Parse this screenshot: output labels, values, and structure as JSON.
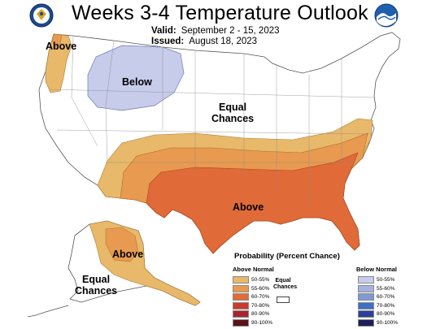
{
  "header": {
    "title": "Weeks 3-4 Temperature Outlook",
    "valid_label": "Valid:",
    "valid_value": "September 2 - 15, 2023",
    "issued_label": "Issued:",
    "issued_value": "August 18, 2023"
  },
  "logos": {
    "left": "doc-seal-icon",
    "right": "noaa-logo-icon"
  },
  "map_labels": {
    "above_nw": "Above",
    "below": "Below",
    "equal_chances_1": "Equal",
    "equal_chances_2": "Chances",
    "above_south": "Above",
    "alaska_above": "Above",
    "alaska_equal_1": "Equal",
    "alaska_equal_2": "Chances"
  },
  "legend": {
    "title": "Probability (Percent Chance)",
    "above_head": "Above Normal",
    "below_head": "Below Normal",
    "equal_1": "Equal",
    "equal_2": "Chances",
    "above": [
      {
        "label": "50-55%",
        "color": "#e8b96a"
      },
      {
        "label": "55-60%",
        "color": "#e89a50"
      },
      {
        "label": "60-70%",
        "color": "#e06a38"
      },
      {
        "label": "70-80%",
        "color": "#cc3a2c"
      },
      {
        "label": "80-90%",
        "color": "#a82530"
      },
      {
        "label": "90-100%",
        "color": "#5a1418"
      }
    ],
    "below": [
      {
        "label": "50-55%",
        "color": "#c6ccea"
      },
      {
        "label": "55-60%",
        "color": "#a4b3df"
      },
      {
        "label": "60-70%",
        "color": "#7e9ad4"
      },
      {
        "label": "70-80%",
        "color": "#3f6fc6"
      },
      {
        "label": "80-90%",
        "color": "#2b3f9c"
      },
      {
        "label": "90-100%",
        "color": "#1c1f5a"
      }
    ]
  }
}
